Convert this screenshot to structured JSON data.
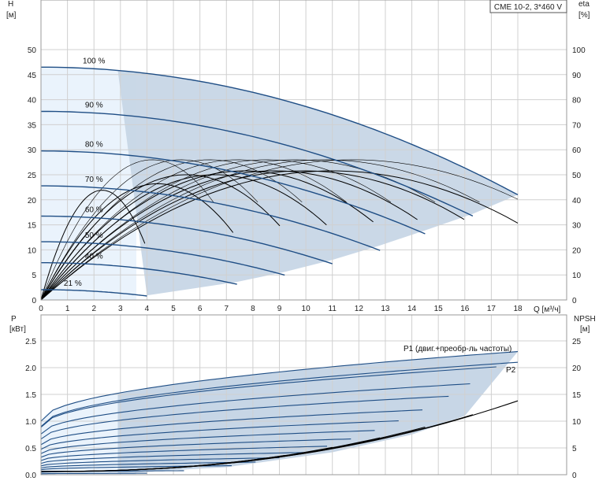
{
  "chart_data": [
    {
      "type": "line",
      "title_box": "CME 10-2, 3*460 V",
      "xlabel": "Q [м³/ч]",
      "x_ticks": [
        "0",
        "1",
        "2",
        "3",
        "4",
        "5",
        "6",
        "7",
        "8",
        "9",
        "10",
        "11",
        "12",
        "13",
        "14",
        "15",
        "16",
        "17",
        "18"
      ],
      "xlim": [
        0,
        18
      ],
      "ylabel_left_top": "H",
      "ylabel_left_unit": "[м]",
      "ylim_left": [
        0,
        50
      ],
      "y_ticks_left": [
        "0",
        "5",
        "10",
        "15",
        "20",
        "25",
        "30",
        "35",
        "40",
        "45",
        "50"
      ],
      "ylabel_right_top": "eta",
      "ylabel_right_unit": "[%]",
      "ylim_right": [
        0,
        100
      ],
      "y_ticks_right": [
        "0",
        "10",
        "20",
        "30",
        "40",
        "50",
        "60",
        "70",
        "80",
        "90",
        "100"
      ],
      "grid": true,
      "region_colors": {
        "operating_area": "#c7d6e6",
        "light_area": "#eaf3fc"
      },
      "series_color": "#1f4e85",
      "eta_color": "#000000",
      "head_curves": [
        {
          "label": "100 %",
          "speed": 1.0,
          "shutoff": 46.5,
          "qmax": 18.0
        },
        {
          "label": "90 %",
          "speed": 0.9,
          "qmax": 16.3
        },
        {
          "label": "80 %",
          "speed": 0.8,
          "qmax": 14.5
        },
        {
          "label": "70 %",
          "speed": 0.7,
          "qmax": 12.8
        },
        {
          "label": "60 %",
          "speed": 0.6,
          "qmax": 11.0
        },
        {
          "label": "50 %",
          "speed": 0.5,
          "qmax": 9.2
        },
        {
          "label": "40 %",
          "speed": 0.4,
          "qmax": 7.4
        },
        {
          "label": "21 %",
          "speed": 0.21,
          "qmax": 4.0
        }
      ]
    },
    {
      "type": "line",
      "xlim": [
        0,
        18
      ],
      "ylabel_left_top": "P",
      "ylabel_left_unit": "[кВт]",
      "ylim_left": [
        0,
        2.75
      ],
      "y_ticks_left": [
        "0.0",
        "0.5",
        "1.0",
        "1.5",
        "2.0",
        "2.5"
      ],
      "y_tick_values_left": [
        0,
        0.5,
        1.0,
        1.5,
        2.0,
        2.5
      ],
      "ylabel_right_top": "NPSH",
      "ylabel_right_unit": "[м]",
      "ylim_right": [
        0,
        27.5
      ],
      "y_ticks_right": [
        "0",
        "5",
        "10",
        "15",
        "20",
        "25"
      ],
      "grid": true,
      "series_labels": [
        "P1 (двиг.+преобр-ль частоты)",
        "P2"
      ],
      "p1_shutoff": 1.0,
      "p1_max": 2.3,
      "p2_max": 2.1,
      "npsh_curves": [
        {
          "qmax": 18.0,
          "npsh_end": 13.8
        },
        {
          "qmax": 16.3,
          "npsh_end": 11.2
        },
        {
          "qmax": 14.5,
          "npsh_end": 8.9
        },
        {
          "qmax": 12.8,
          "npsh_end": 6.9
        },
        {
          "qmax": 11.0,
          "npsh_end": 5.1
        },
        {
          "qmax": 9.2,
          "npsh_end": 3.6
        },
        {
          "qmax": 7.4,
          "npsh_end": 2.3
        }
      ]
    }
  ]
}
